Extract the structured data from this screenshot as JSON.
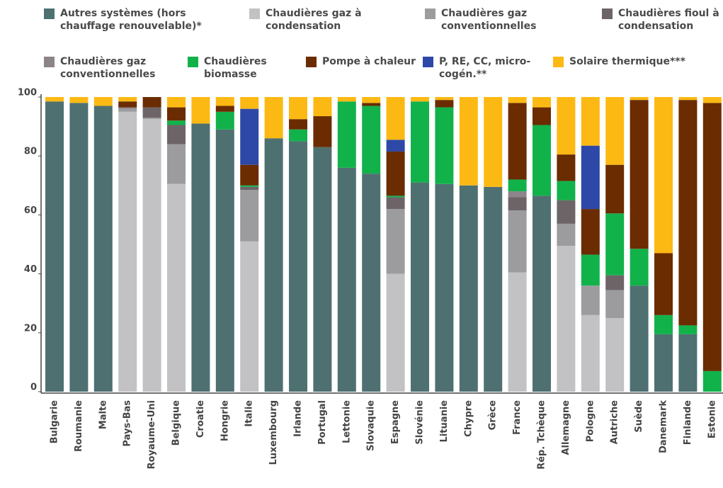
{
  "chart_data": {
    "type": "stacked_bar",
    "categories": [
      "Bulgarie",
      "Roumanie",
      "Malte",
      "Pays-Bas",
      "Royaume-Uni",
      "Belgique",
      "Croatie",
      "Hongrie",
      "Italie",
      "Luxembourg",
      "Irlande",
      "Portugal",
      "Lettonie",
      "Slovaquie",
      "Espagne",
      "Slovénie",
      "Lituanie",
      "Chypre",
      "Grèce",
      "France",
      "Rép. Tchèque",
      "Allemagne",
      "Pologne",
      "Autriche",
      "Suède",
      "Danemark",
      "Finlande",
      "Estonie"
    ],
    "series": [
      {
        "name": "Autres systèmes (hors chauffage renouvelable)*",
        "color": "#4f7070",
        "values": [
          98.5,
          98,
          97,
          0,
          0,
          0,
          91,
          89,
          0,
          86,
          85,
          83,
          76,
          74,
          0,
          71,
          70.5,
          70,
          69.5,
          0,
          66.5,
          0,
          0,
          0,
          36,
          19.5,
          19.5,
          0
        ]
      },
      {
        "name": "Chaudières gaz à condensation",
        "color": "#c2c2c4",
        "values": [
          0,
          0,
          0,
          95,
          92.5,
          70.5,
          0,
          0,
          51,
          0,
          0,
          0,
          0,
          0,
          40,
          0,
          0,
          0,
          0,
          40.5,
          0,
          49.5,
          26,
          25,
          0,
          0,
          0,
          0
        ]
      },
      {
        "name": "Chaudières gaz conventionnelles",
        "color": "#9c9c9e",
        "values": [
          0,
          0,
          0,
          1,
          0.5,
          13.5,
          0,
          0,
          17.5,
          0,
          0,
          0,
          0,
          0,
          22,
          0,
          0,
          0,
          0,
          21,
          0,
          7.5,
          10,
          9.5,
          0,
          0,
          0,
          0
        ]
      },
      {
        "name": "Chaudières fioul à condensation",
        "color": "#6d6468",
        "values": [
          0,
          0,
          0,
          0,
          3.5,
          6.5,
          0,
          0,
          1,
          0,
          0,
          0,
          0,
          0,
          4,
          0,
          0,
          0,
          0,
          4.5,
          0,
          8,
          0,
          5,
          0,
          0,
          0,
          0
        ]
      },
      {
        "name": "Chaudières gaz conventionnelles",
        "color": "#8c8489",
        "values": [
          0,
          0,
          0,
          0.5,
          0,
          0,
          0,
          0,
          0,
          0,
          0,
          0,
          0,
          0,
          0,
          0,
          0,
          0,
          0,
          2,
          0,
          0,
          0,
          0,
          0,
          0,
          0,
          0
        ]
      },
      {
        "name": "Chaudières biomasse",
        "color": "#12b24b",
        "values": [
          0,
          0,
          0,
          0,
          0,
          1.5,
          0,
          6,
          0.5,
          0,
          4,
          0,
          22.5,
          23,
          0.5,
          27.5,
          26,
          0,
          0,
          4,
          24,
          6.5,
          10.5,
          21,
          12.5,
          6.5,
          3,
          7
        ]
      },
      {
        "name": "Pompe à chaleur",
        "color": "#6a2c00",
        "values": [
          0,
          0,
          0,
          2,
          3.5,
          4.5,
          0,
          2,
          7,
          0,
          3.5,
          10.5,
          0,
          1,
          15,
          0,
          2.5,
          0,
          0,
          26,
          6,
          9,
          15.5,
          16.5,
          50.5,
          21,
          76.5,
          91
        ]
      },
      {
        "name": "P, RE, CC, micro-cogén.**",
        "color": "#2e48a8",
        "values": [
          0,
          0,
          0,
          0,
          0,
          0,
          0,
          0,
          19,
          0,
          0,
          0,
          0,
          0,
          4,
          0,
          0,
          0,
          0,
          0,
          0,
          0,
          21.5,
          0,
          0,
          0,
          0,
          0
        ]
      },
      {
        "name": "Solaire thermique***",
        "color": "#fdb913",
        "values": [
          1.5,
          2,
          3,
          1.5,
          0,
          3.5,
          9,
          3,
          4,
          14,
          7.5,
          6.5,
          1.5,
          2,
          14.5,
          1.5,
          1,
          30,
          30.5,
          2,
          3.5,
          19.5,
          16.5,
          23,
          1,
          53,
          1,
          2
        ]
      }
    ],
    "ylim": [
      0,
      100
    ],
    "yticks": [
      0,
      20,
      40,
      60,
      80,
      100
    ],
    "grid": false
  }
}
